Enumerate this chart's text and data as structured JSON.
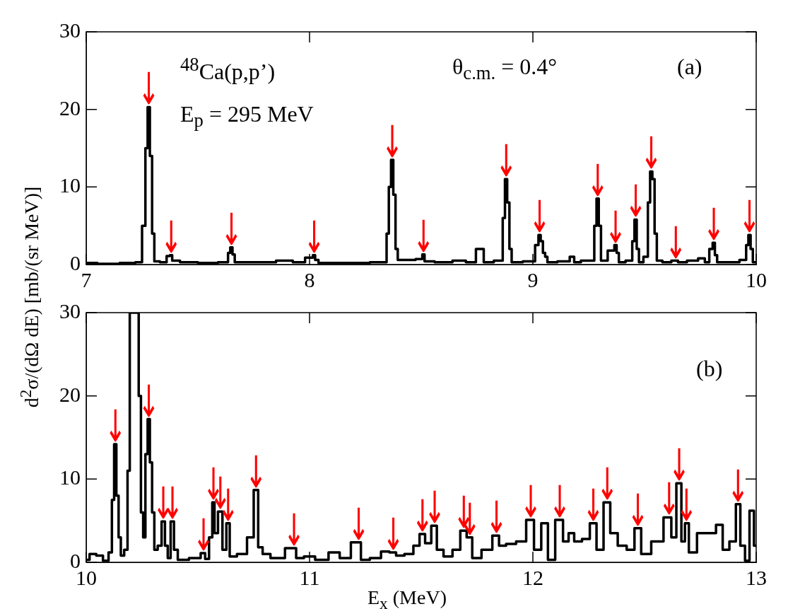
{
  "chart_data": [
    {
      "type": "step",
      "ylabel": "d$^{2}$σ/(dΩ dE) [mb/(sr MeV)]",
      "xlim": [
        7,
        10
      ],
      "xticks": [
        7,
        8,
        9,
        10
      ],
      "ylim": [
        0,
        30
      ],
      "yticks": [
        0,
        10,
        20,
        30
      ],
      "grid": false,
      "series": [
        {
          "color": "#000000",
          "x": [
            7.0,
            7.1,
            7.2,
            7.24,
            7.26,
            7.27,
            7.28,
            7.29,
            7.3,
            7.31,
            7.35,
            7.37,
            7.38,
            7.39,
            7.45,
            7.55,
            7.63,
            7.64,
            7.65,
            7.66,
            7.67,
            7.8,
            7.9,
            7.95,
            8.01,
            8.02,
            8.03,
            8.05,
            8.2,
            8.34,
            8.35,
            8.36,
            8.37,
            8.38,
            8.39,
            8.4,
            8.45,
            8.5,
            8.51,
            8.52,
            8.6,
            8.68,
            8.72,
            8.77,
            8.79,
            8.86,
            8.87,
            8.88,
            8.89,
            8.9,
            8.91,
            9.0,
            9.02,
            9.03,
            9.04,
            9.05,
            9.06,
            9.07,
            9.15,
            9.18,
            9.19,
            9.24,
            9.27,
            9.28,
            9.29,
            9.3,
            9.31,
            9.36,
            9.37,
            9.38,
            9.39,
            9.44,
            9.45,
            9.46,
            9.47,
            9.48,
            9.51,
            9.52,
            9.53,
            9.54,
            9.55,
            9.56,
            9.6,
            9.64,
            9.66,
            9.72,
            9.76,
            9.78,
            9.8,
            9.81,
            9.82,
            9.83,
            9.9,
            9.95,
            9.96,
            9.97,
            9.98,
            9.99,
            10.0
          ],
          "values": [
            0.2,
            0.1,
            0.2,
            0.3,
            5,
            15,
            20.3,
            14,
            4,
            0.4,
            0.3,
            1.1,
            1.2,
            0.5,
            0.3,
            0.2,
            0.3,
            1.5,
            2.2,
            1.3,
            0.3,
            0.3,
            0.5,
            0.3,
            0.9,
            1.2,
            0.6,
            0.2,
            0.2,
            0.3,
            4,
            10,
            13.5,
            9,
            2,
            0.6,
            0.6,
            0.7,
            1.3,
            0.4,
            0.3,
            0.5,
            0.3,
            2,
            0.3,
            0.5,
            6,
            11,
            8,
            2,
            0.3,
            0.4,
            2.5,
            3.8,
            3,
            1.5,
            1,
            0.3,
            0.4,
            1,
            0.3,
            0.5,
            0.5,
            5,
            8.5,
            5,
            0.5,
            1.8,
            2.5,
            1.5,
            0.3,
            0.5,
            3,
            5.8,
            2,
            0.3,
            1,
            8,
            12,
            11,
            4,
            0.5,
            0.3,
            0.5,
            0.3,
            0.5,
            0.8,
            0.3,
            2,
            2.8,
            1.2,
            0.3,
            0.3,
            0.6,
            2.5,
            3.8,
            2,
            0.3,
            0.3
          ]
        }
      ],
      "annotations": [
        "$^{48}$Ca(p,p’)",
        "E$_{p}$ = 295 MeV",
        "θ$_{c.m.}$ = 0.4°",
        "(a)",
        {
          "text": "↓",
          "x": 7.28,
          "y": 20.3
        },
        {
          "text": "↓",
          "x": 7.38,
          "y": 1.2
        },
        {
          "text": "↓",
          "x": 7.65,
          "y": 2.2
        },
        {
          "text": "↓",
          "x": 8.02,
          "y": 1.2
        },
        {
          "text": "↓",
          "x": 8.37,
          "y": 13.5
        },
        {
          "text": "↓",
          "x": 8.51,
          "y": 1.3
        },
        {
          "text": "↓",
          "x": 8.88,
          "y": 11
        },
        {
          "text": "↓",
          "x": 9.03,
          "y": 3.8
        },
        {
          "text": "↓",
          "x": 9.29,
          "y": 8.5
        },
        {
          "text": "↓",
          "x": 9.37,
          "y": 2.5
        },
        {
          "text": "↓",
          "x": 9.46,
          "y": 5.8
        },
        {
          "text": "↓",
          "x": 9.53,
          "y": 12
        },
        {
          "text": "↓",
          "x": 9.64,
          "y": 0.5
        },
        {
          "text": "↓",
          "x": 9.81,
          "y": 2.8
        },
        {
          "text": "↓",
          "x": 9.97,
          "y": 3.8
        }
      ]
    },
    {
      "type": "step",
      "xlabel": "E$_{x}$ (MeV)",
      "xlim": [
        10,
        13
      ],
      "xticks": [
        10,
        11,
        12,
        13
      ],
      "ylim": [
        0,
        30
      ],
      "yticks": [
        0,
        10,
        20,
        30
      ],
      "grid": false,
      "series": [
        {
          "color": "#000000",
          "x": [
            10.0,
            10.03,
            10.06,
            10.09,
            10.11,
            10.12,
            10.13,
            10.14,
            10.15,
            10.16,
            10.18,
            10.19,
            10.2,
            10.23,
            10.24,
            10.25,
            10.26,
            10.27,
            10.28,
            10.29,
            10.3,
            10.31,
            10.33,
            10.345,
            10.36,
            10.37,
            10.386,
            10.4,
            10.42,
            10.5,
            10.525,
            10.54,
            10.56,
            10.569,
            10.58,
            10.6,
            10.62,
            10.635,
            10.65,
            10.7,
            10.74,
            10.76,
            10.78,
            10.8,
            10.85,
            10.93,
            10.95,
            11.0,
            11.05,
            11.12,
            11.15,
            11.22,
            11.24,
            11.3,
            11.34,
            11.375,
            11.4,
            11.45,
            11.48,
            11.505,
            11.53,
            11.56,
            11.58,
            11.62,
            11.66,
            11.69,
            11.717,
            11.74,
            11.8,
            11.837,
            11.86,
            11.9,
            11.95,
            11.99,
            12.02,
            12.055,
            12.08,
            12.12,
            12.15,
            12.17,
            12.2,
            12.24,
            12.27,
            12.3,
            12.333,
            12.36,
            12.4,
            12.44,
            12.47,
            12.5,
            12.56,
            12.61,
            12.63,
            12.655,
            12.675,
            12.687,
            12.71,
            12.76,
            12.8,
            12.84,
            12.86,
            12.9,
            12.918,
            12.94,
            12.96,
            12.98,
            13.0
          ],
          "values": [
            0.3,
            1.0,
            0.8,
            0.2,
            1.2,
            7.5,
            14.2,
            8,
            3,
            0.8,
            1.5,
            11,
            30,
            30,
            20,
            6,
            3,
            13,
            17.2,
            12,
            6,
            1.5,
            2,
            4.9,
            2,
            0.5,
            4.9,
            1.5,
            0.3,
            0.5,
            1.1,
            0.4,
            3,
            7.2,
            3.5,
            6.1,
            1.5,
            4.7,
            0.7,
            1.0,
            3,
            8.7,
            1.8,
            1.0,
            0.5,
            1.7,
            0.5,
            0.7,
            0.3,
            1.2,
            0.5,
            2.4,
            0.3,
            0.5,
            1.3,
            1.2,
            0.8,
            1.0,
            2.0,
            3.4,
            2.3,
            4.4,
            1.5,
            0.7,
            1.5,
            3.8,
            3.0,
            0.5,
            1.5,
            3.2,
            2.0,
            2.2,
            2.5,
            5.1,
            1.5,
            4.7,
            0.3,
            5.1,
            2.5,
            3.5,
            2.5,
            2.8,
            4.7,
            1.5,
            7.2,
            3.5,
            2.0,
            1.5,
            4.1,
            1.0,
            2.5,
            5.4,
            3.0,
            9.5,
            2.5,
            4.7,
            1.2,
            3.5,
            3.5,
            4.5,
            1.5,
            2.5,
            7.0,
            2.0,
            0.2,
            6.2,
            2.0
          ]
        }
      ],
      "annotations": [
        "(b)",
        {
          "text": "↓",
          "x": 10.13,
          "y": 14.2
        },
        {
          "text": "↓",
          "x": 10.28,
          "y": 17.2
        },
        {
          "text": "↓",
          "x": 10.345,
          "y": 4.9
        },
        {
          "text": "↓",
          "x": 10.386,
          "y": 4.9
        },
        {
          "text": "↓",
          "x": 10.525,
          "y": 1.1
        },
        {
          "text": "↓",
          "x": 10.569,
          "y": 7.2
        },
        {
          "text": "↓",
          "x": 10.6,
          "y": 6.1
        },
        {
          "text": "↓",
          "x": 10.635,
          "y": 4.7
        },
        {
          "text": "↓",
          "x": 10.76,
          "y": 8.7
        },
        {
          "text": "↓",
          "x": 10.93,
          "y": 1.7
        },
        {
          "text": "↓",
          "x": 11.22,
          "y": 2.4
        },
        {
          "text": "↓",
          "x": 11.375,
          "y": 1.2
        },
        {
          "text": "↓",
          "x": 11.505,
          "y": 3.4
        },
        {
          "text": "↓",
          "x": 11.56,
          "y": 4.4
        },
        {
          "text": "↓",
          "x": 11.69,
          "y": 3.8
        },
        {
          "text": "↓",
          "x": 11.717,
          "y": 3.0
        },
        {
          "text": "↓",
          "x": 11.837,
          "y": 3.2
        },
        {
          "text": "↓",
          "x": 11.99,
          "y": 5.1
        },
        {
          "text": "↓",
          "x": 12.12,
          "y": 5.1
        },
        {
          "text": "↓",
          "x": 12.27,
          "y": 4.7
        },
        {
          "text": "↓",
          "x": 12.333,
          "y": 7.2
        },
        {
          "text": "↓",
          "x": 12.47,
          "y": 4.1
        },
        {
          "text": "↓",
          "x": 12.61,
          "y": 5.4
        },
        {
          "text": "↓",
          "x": 12.655,
          "y": 9.5
        },
        {
          "text": "↓",
          "x": 12.687,
          "y": 4.7
        },
        {
          "text": "↓",
          "x": 12.918,
          "y": 7.0
        }
      ]
    }
  ]
}
